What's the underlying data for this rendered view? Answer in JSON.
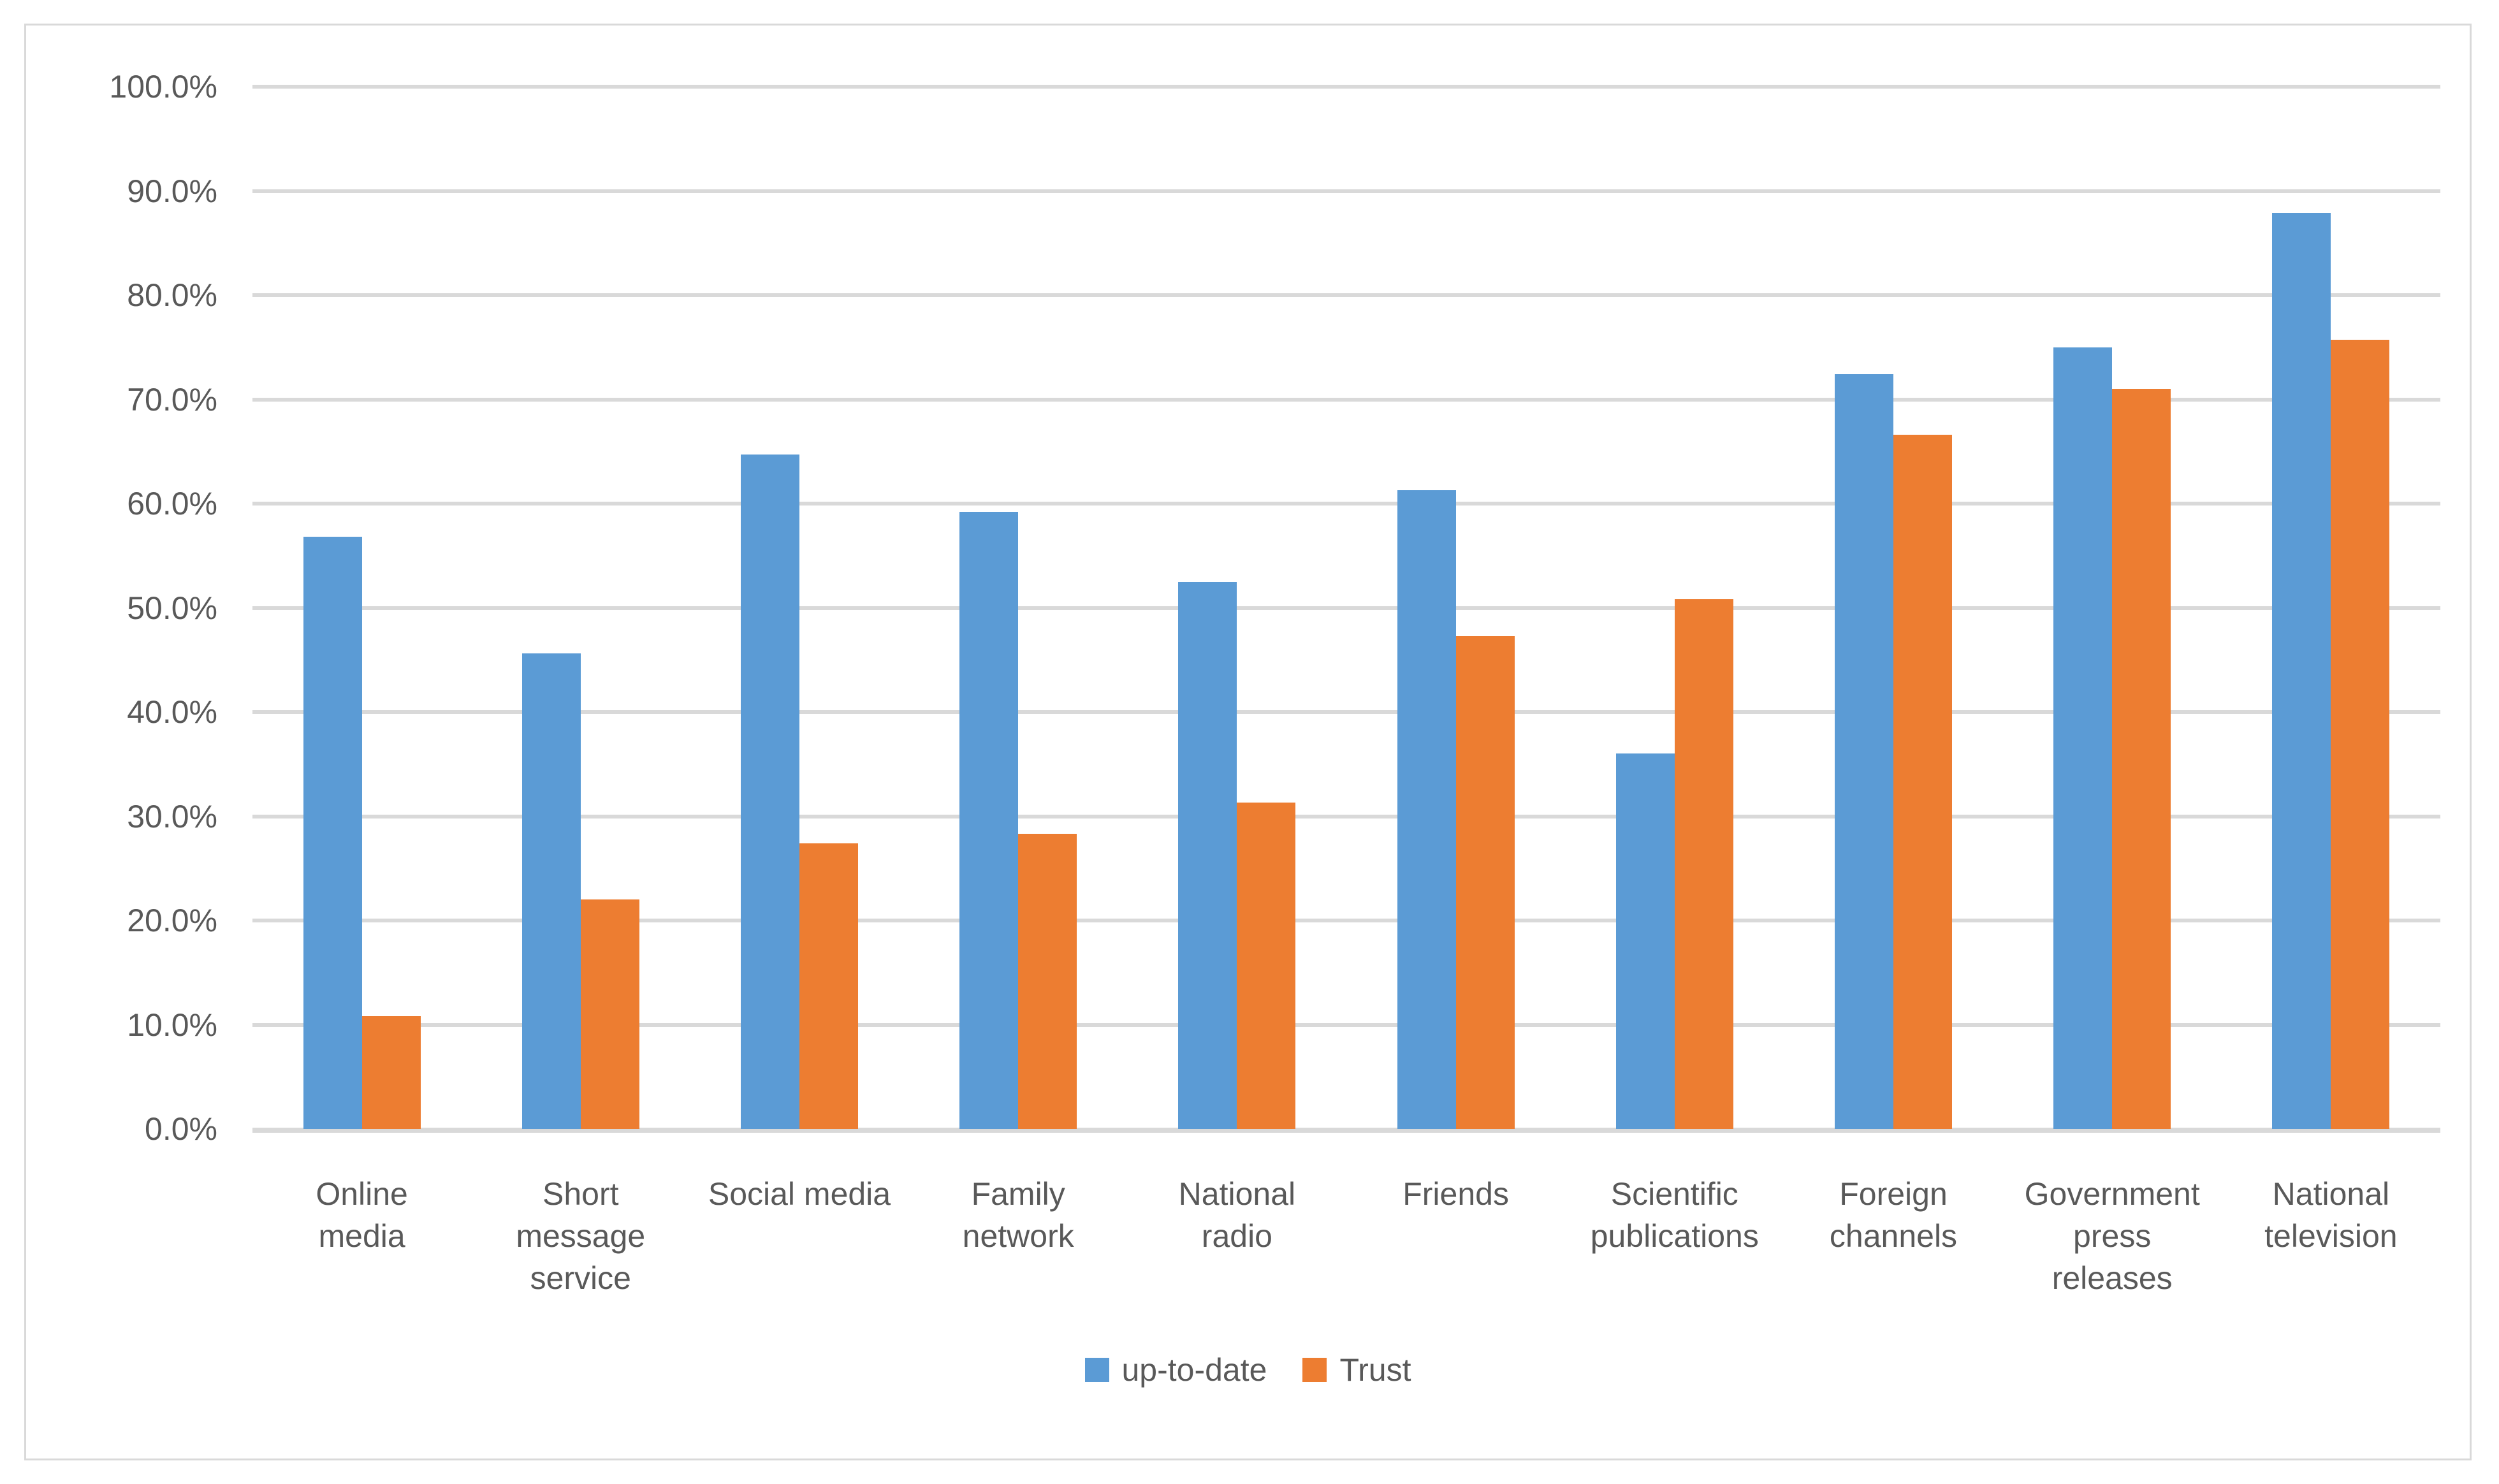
{
  "chart_data": {
    "type": "bar",
    "title": "",
    "categories": [
      "Online media",
      "Short message service",
      "Social media",
      "Family network",
      "National radio",
      "Friends",
      "Scientific publications",
      "Foreign channels",
      "Government press releases",
      "National television"
    ],
    "category_label_lines": [
      [
        "Online",
        "media"
      ],
      [
        "Short",
        "message",
        "service"
      ],
      [
        "Social media"
      ],
      [
        "Family",
        "network"
      ],
      [
        "National",
        "radio"
      ],
      [
        "Friends"
      ],
      [
        "Scientific",
        "publications"
      ],
      [
        "Foreign",
        "channels"
      ],
      [
        "Government",
        "press",
        "releases"
      ],
      [
        "National",
        "television"
      ]
    ],
    "series": [
      {
        "name": "up-to-date",
        "color": "#5B9BD5",
        "values": [
          56.8,
          45.6,
          64.7,
          59.2,
          52.5,
          61.3,
          36.0,
          72.4,
          75.0,
          87.9
        ]
      },
      {
        "name": "Trust",
        "color": "#ED7D31",
        "values": [
          10.8,
          22.0,
          27.4,
          28.3,
          31.3,
          47.3,
          50.8,
          66.6,
          71.0,
          75.7
        ]
      }
    ],
    "y_axis": {
      "min": 0,
      "max": 100,
      "step": 10,
      "tick_labels": [
        "0.0%",
        "10.0%",
        "20.0%",
        "30.0%",
        "40.0%",
        "50.0%",
        "60.0%",
        "70.0%",
        "80.0%",
        "90.0%",
        "100.0%"
      ],
      "unit": "%"
    },
    "grid": true,
    "legend_position": "bottom",
    "colors": {
      "gridline": "#D9D9D9",
      "axis_text": "#595959",
      "border": "#D9D9D9",
      "background": "#FFFFFF"
    }
  }
}
